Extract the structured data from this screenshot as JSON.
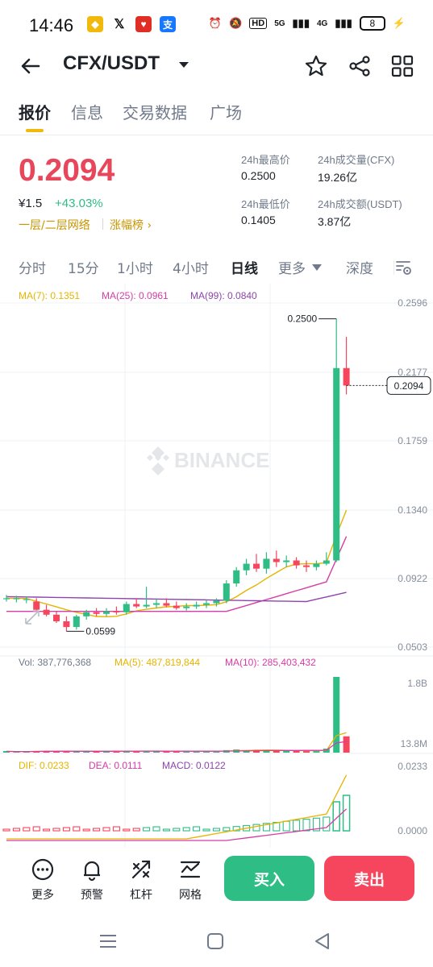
{
  "status_bar": {
    "time": "14:46",
    "apps": [
      "binance-icon",
      "x-icon",
      "red-app-icon",
      "alipay-icon"
    ],
    "network": "HD",
    "signal_a": "5G",
    "signal_b": "4G",
    "battery": "8"
  },
  "header": {
    "pair": "CFX/USDT",
    "icons": [
      "back-arrow-icon",
      "star-icon",
      "share-icon",
      "grid-icon"
    ]
  },
  "tabs": [
    "报价",
    "信息",
    "交易数据",
    "广场"
  ],
  "active_tab": "报价",
  "price": {
    "last": "0.2094",
    "cny": "¥1.5",
    "change": "+43.03%",
    "network_tag": "一层/二层网络",
    "rank_link": "涨幅榜 ›"
  },
  "stats": {
    "high_label": "24h最高价",
    "high_value": "0.2500",
    "low_label": "24h最低价",
    "low_value": "0.1405",
    "vol_label": "24h成交量(CFX)",
    "vol_value": "19.26亿",
    "amt_label": "24h成交额(USDT)",
    "amt_value": "3.87亿"
  },
  "intervals": [
    "分时",
    "15分",
    "1小时",
    "4小时",
    "日线",
    "更多",
    "深度"
  ],
  "active_interval": "日线",
  "colors": {
    "up": "#2ebd85",
    "down": "#f6465d",
    "accent": "#f0b90b",
    "ma7": "#e6b400",
    "ma25": "#d63ca5",
    "ma99": "#8e44ad"
  },
  "chart_data": {
    "type": "candlestick",
    "watermark": "BINANCE",
    "ma_legend": {
      "ma7": "MA(7): 0.1351",
      "ma25": "MA(25): 0.0961",
      "ma99": "MA(99): 0.0840"
    },
    "y_ticks": [
      "0.2596",
      "0.2177",
      "0.1759",
      "0.1340",
      "0.0922",
      "0.0503"
    ],
    "ylim": [
      0.0503,
      0.2596
    ],
    "high_marker": "0.2500",
    "low_marker": "0.0599",
    "current_price": "0.2094",
    "candles": [
      {
        "o": 0.08,
        "h": 0.082,
        "l": 0.078,
        "c": 0.08
      },
      {
        "o": 0.0795,
        "h": 0.0815,
        "l": 0.0775,
        "c": 0.08
      },
      {
        "o": 0.079,
        "h": 0.081,
        "l": 0.077,
        "c": 0.0795
      },
      {
        "o": 0.078,
        "h": 0.08,
        "l": 0.072,
        "c": 0.073
      },
      {
        "o": 0.073,
        "h": 0.076,
        "l": 0.069,
        "c": 0.07
      },
      {
        "o": 0.07,
        "h": 0.072,
        "l": 0.065,
        "c": 0.066
      },
      {
        "o": 0.066,
        "h": 0.069,
        "l": 0.0599,
        "c": 0.0625
      },
      {
        "o": 0.0625,
        "h": 0.07,
        "l": 0.061,
        "c": 0.069
      },
      {
        "o": 0.069,
        "h": 0.073,
        "l": 0.067,
        "c": 0.0715
      },
      {
        "o": 0.0715,
        "h": 0.074,
        "l": 0.069,
        "c": 0.0705
      },
      {
        "o": 0.0705,
        "h": 0.074,
        "l": 0.069,
        "c": 0.072
      },
      {
        "o": 0.072,
        "h": 0.075,
        "l": 0.07,
        "c": 0.0715
      },
      {
        "o": 0.0715,
        "h": 0.078,
        "l": 0.07,
        "c": 0.0765
      },
      {
        "o": 0.0765,
        "h": 0.08,
        "l": 0.074,
        "c": 0.075
      },
      {
        "o": 0.075,
        "h": 0.087,
        "l": 0.074,
        "c": 0.076
      },
      {
        "o": 0.076,
        "h": 0.08,
        "l": 0.074,
        "c": 0.077
      },
      {
        "o": 0.077,
        "h": 0.08,
        "l": 0.0745,
        "c": 0.0755
      },
      {
        "o": 0.0755,
        "h": 0.078,
        "l": 0.073,
        "c": 0.074
      },
      {
        "o": 0.074,
        "h": 0.077,
        "l": 0.0725,
        "c": 0.075
      },
      {
        "o": 0.075,
        "h": 0.078,
        "l": 0.0735,
        "c": 0.076
      },
      {
        "o": 0.076,
        "h": 0.079,
        "l": 0.074,
        "c": 0.077
      },
      {
        "o": 0.077,
        "h": 0.08,
        "l": 0.075,
        "c": 0.0785
      },
      {
        "o": 0.0785,
        "h": 0.091,
        "l": 0.077,
        "c": 0.089
      },
      {
        "o": 0.089,
        "h": 0.099,
        "l": 0.087,
        "c": 0.097
      },
      {
        "o": 0.097,
        "h": 0.104,
        "l": 0.094,
        "c": 0.101
      },
      {
        "o": 0.101,
        "h": 0.107,
        "l": 0.096,
        "c": 0.098
      },
      {
        "o": 0.098,
        "h": 0.108,
        "l": 0.095,
        "c": 0.104
      },
      {
        "o": 0.104,
        "h": 0.109,
        "l": 0.099,
        "c": 0.102
      },
      {
        "o": 0.102,
        "h": 0.106,
        "l": 0.099,
        "c": 0.103
      },
      {
        "o": 0.103,
        "h": 0.105,
        "l": 0.098,
        "c": 0.1
      },
      {
        "o": 0.1,
        "h": 0.103,
        "l": 0.096,
        "c": 0.099
      },
      {
        "o": 0.099,
        "h": 0.103,
        "l": 0.097,
        "c": 0.101
      },
      {
        "o": 0.101,
        "h": 0.108,
        "l": 0.1,
        "c": 0.103
      },
      {
        "o": 0.103,
        "h": 0.25,
        "l": 0.102,
        "c": 0.22
      },
      {
        "o": 0.22,
        "h": 0.239,
        "l": 0.204,
        "c": 0.2094
      }
    ],
    "vol_legend": {
      "vol": "Vol: 387,776,368",
      "ma5": "MA(5): 487,819,844",
      "ma10": "MA(10): 285,403,432"
    },
    "vol_ticks": [
      "1.8B",
      "13.8M"
    ],
    "volumes": [
      30,
      25,
      28,
      35,
      40,
      38,
      42,
      30,
      28,
      32,
      30,
      35,
      40,
      38,
      45,
      32,
      30,
      35,
      28,
      30,
      32,
      38,
      60,
      75,
      58,
      70,
      55,
      50,
      45,
      42,
      40,
      48,
      95,
      1800,
      388
    ],
    "macd_legend": {
      "dif": "DIF: 0.0233",
      "dea": "DEA: 0.0111",
      "macd": "MACD: 0.0122"
    },
    "macd_ticks": [
      "0.0233",
      "0.0000"
    ]
  },
  "actions": [
    {
      "icon": "more-icon",
      "label": "更多"
    },
    {
      "icon": "bell-icon",
      "label": "预警"
    },
    {
      "icon": "leverage-icon",
      "label": "杠杆"
    },
    {
      "icon": "grid-trade-icon",
      "label": "网格"
    }
  ],
  "buy_label": "买入",
  "sell_label": "卖出"
}
